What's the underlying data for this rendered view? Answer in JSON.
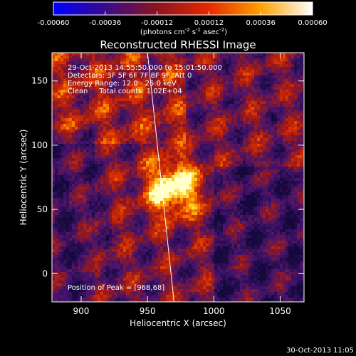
{
  "chart_data": {
    "type": "heatmap",
    "title": "Reconstructed RHESSI Image",
    "xlabel": "Heliocentric X (arcsec)",
    "ylabel": "Heliocentric Y (arcsec)",
    "xlim": [
      878,
      1068
    ],
    "ylim": [
      -22,
      172
    ],
    "x_ticks": [
      900,
      950,
      1000,
      1050
    ],
    "y_ticks": [
      0,
      50,
      100,
      150
    ],
    "colorbar": {
      "range": [
        -0.0006,
        0.0006
      ],
      "tick_labels": [
        "-0.00060",
        "-0.00036",
        "-0.00012",
        "0.00012",
        "0.00036",
        "0.00060"
      ],
      "unit_label_parts": [
        "(photons cm",
        "-2",
        " s",
        "-1",
        " asec",
        "-2",
        ")"
      ],
      "colors": [
        "#0000ff",
        "#3a0a8c",
        "#8a1420",
        "#e62800",
        "#ffa000",
        "#ffffff"
      ]
    },
    "annotations": [
      "29-Oct-2013 14:55:50.000 to 15:01:50.000",
      "Detectors: 3F 5F 6F 7F 8F 9F, Att 0",
      "Energy Range: 12.0 - 25.0 keV",
      "Clean     Total counts: 1.02E+04"
    ],
    "peak_label": "Position of Peak = [968,68]",
    "peak": [
      968,
      68
    ],
    "limb_line": [
      [
        950,
        172
      ],
      [
        970,
        -22
      ]
    ],
    "timestamp": "30-Oct-2013 11:05"
  }
}
